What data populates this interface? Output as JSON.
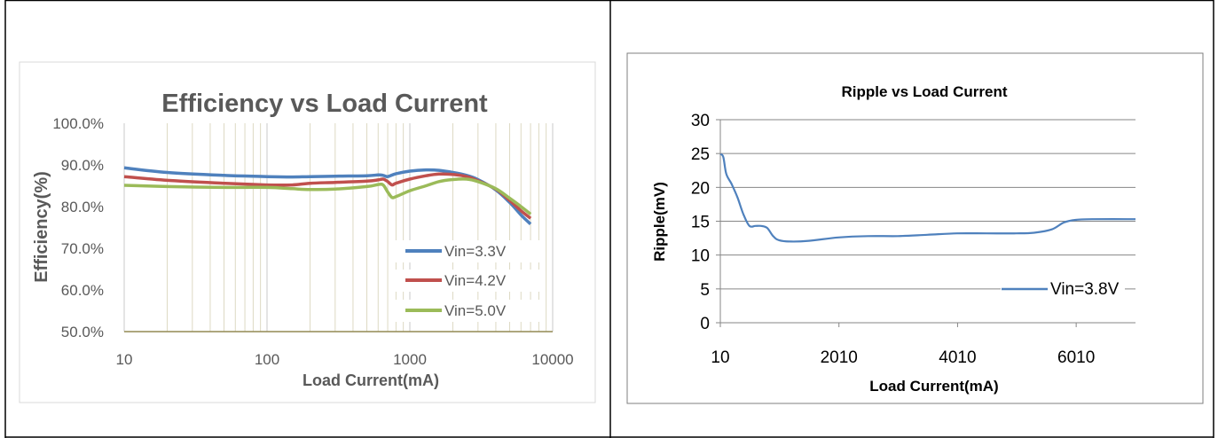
{
  "chart_data": [
    {
      "type": "line",
      "title": "Efficiency vs Load Current",
      "xlabel": "Load Current(mA)",
      "ylabel": "Efficiency(%)",
      "x_scale": "log",
      "xlim": [
        10,
        10000
      ],
      "ylim": [
        0.5,
        1.0
      ],
      "x_ticks": [
        "10",
        "100",
        "1000",
        "10000"
      ],
      "y_ticks": [
        "50.0%",
        "60.0%",
        "70.0%",
        "80.0%",
        "90.0%",
        "100.0%"
      ],
      "grid": "vertical log minor lines",
      "legend_position": "right",
      "series": [
        {
          "name": "Vin=3.3V",
          "color": "#4f81bd",
          "x": [
            10,
            20,
            50,
            100,
            150,
            200,
            300,
            500,
            600,
            650,
            700,
            800,
            1000,
            1300,
            1600,
            2000,
            2500,
            3000,
            4000,
            5000,
            6000,
            7000
          ],
          "y": [
            0.893,
            0.882,
            0.875,
            0.872,
            0.871,
            0.872,
            0.873,
            0.874,
            0.876,
            0.875,
            0.872,
            0.879,
            0.885,
            0.888,
            0.887,
            0.882,
            0.875,
            0.865,
            0.84,
            0.81,
            0.78,
            0.758
          ]
        },
        {
          "name": "Vin=4.2V",
          "color": "#c0504d",
          "x": [
            10,
            20,
            50,
            100,
            150,
            200,
            300,
            500,
            600,
            650,
            700,
            750,
            800,
            1000,
            1300,
            1600,
            2000,
            2500,
            3000,
            4000,
            5000,
            6000,
            7000
          ],
          "y": [
            0.872,
            0.863,
            0.856,
            0.852,
            0.852,
            0.856,
            0.858,
            0.861,
            0.864,
            0.866,
            0.86,
            0.852,
            0.856,
            0.866,
            0.874,
            0.878,
            0.877,
            0.872,
            0.862,
            0.842,
            0.815,
            0.79,
            0.772
          ]
        },
        {
          "name": "Vin=5.0V",
          "color": "#9bbb59",
          "x": [
            10,
            20,
            50,
            100,
            150,
            200,
            300,
            500,
            600,
            650,
            700,
            750,
            800,
            1000,
            1300,
            1600,
            2000,
            2500,
            3000,
            4000,
            5000,
            6000,
            7000
          ],
          "y": [
            0.851,
            0.848,
            0.846,
            0.846,
            0.843,
            0.841,
            0.842,
            0.848,
            0.853,
            0.852,
            0.835,
            0.822,
            0.824,
            0.838,
            0.85,
            0.86,
            0.865,
            0.866,
            0.86,
            0.843,
            0.82,
            0.8,
            0.782
          ]
        }
      ]
    },
    {
      "type": "line",
      "title": "Ripple vs Load Current",
      "xlabel": "Load Current(mA)",
      "ylabel": "Ripple(mV)",
      "xlim": [
        10,
        7010
      ],
      "ylim": [
        0,
        30
      ],
      "x_ticks": [
        "10",
        "2010",
        "4010",
        "6010"
      ],
      "y_ticks": [
        "0",
        "5",
        "10",
        "15",
        "20",
        "25",
        "30"
      ],
      "grid": "horizontal major lines",
      "legend_position": "right",
      "series": [
        {
          "name": "Vin=3.8V",
          "color": "#4f81bd",
          "x": [
            10,
            60,
            110,
            200,
            300,
            400,
            500,
            600,
            700,
            800,
            900,
            1000,
            1200,
            1500,
            2000,
            2500,
            3000,
            3500,
            4000,
            4500,
            5000,
            5300,
            5600,
            5800,
            6000,
            6300,
            7010
          ],
          "y": [
            24.9,
            24.5,
            22.0,
            20.5,
            18.5,
            16.0,
            14.3,
            14.3,
            14.3,
            14.0,
            12.8,
            12.2,
            12.0,
            12.1,
            12.6,
            12.8,
            12.8,
            13.0,
            13.2,
            13.2,
            13.2,
            13.3,
            13.8,
            14.8,
            15.2,
            15.3,
            15.3
          ]
        }
      ]
    }
  ]
}
